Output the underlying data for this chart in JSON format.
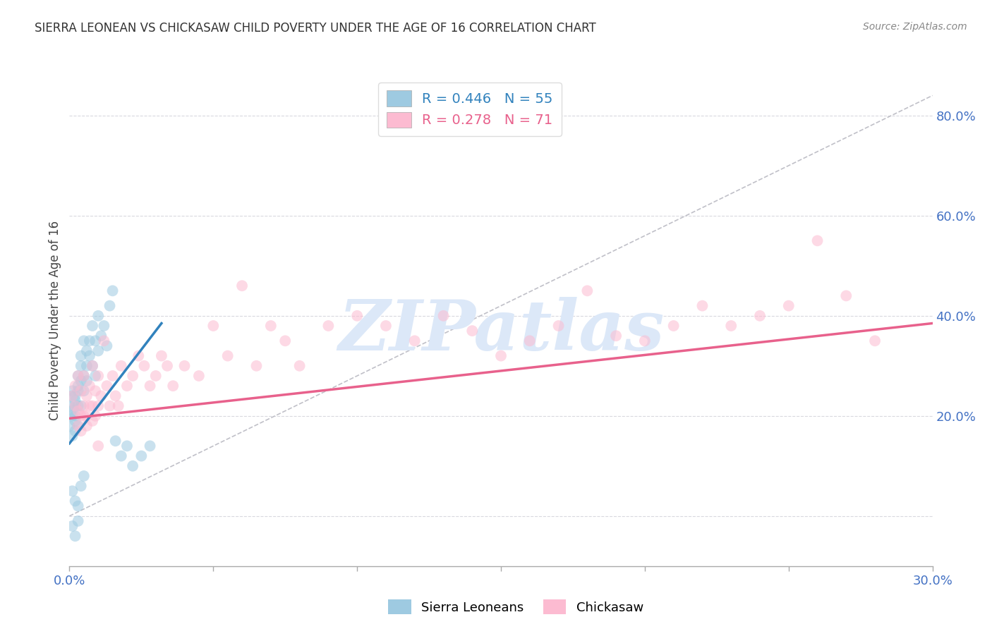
{
  "title": "SIERRA LEONEAN VS CHICKASAW CHILD POVERTY UNDER THE AGE OF 16 CORRELATION CHART",
  "source": "Source: ZipAtlas.com",
  "ylabel": "Child Poverty Under the Age of 16",
  "xlabel": "",
  "legend_labels": [
    "Sierra Leoneans",
    "Chickasaw"
  ],
  "r_blue": 0.446,
  "n_blue": 55,
  "r_pink": 0.278,
  "n_pink": 71,
  "blue_color": "#9ecae1",
  "pink_color": "#fcbbd1",
  "blue_line_color": "#3182bd",
  "pink_line_color": "#e8618c",
  "ref_line_color": "#c0c0c8",
  "title_color": "#333333",
  "axis_label_color": "#4472c4",
  "watermark_color": "#dce8f8",
  "xlim": [
    0.0,
    0.3
  ],
  "ylim": [
    -0.1,
    0.88
  ],
  "xticks": [
    0.0,
    0.05,
    0.1,
    0.15,
    0.2,
    0.25,
    0.3
  ],
  "yticks": [
    0.0,
    0.2,
    0.4,
    0.6,
    0.8
  ],
  "ytick_labels": [
    "",
    "20.0%",
    "40.0%",
    "60.0%",
    "80.0%"
  ],
  "xtick_labels": [
    "0.0%",
    "",
    "",
    "",
    "",
    "",
    "30.0%"
  ],
  "blue_scatter_x": [
    0.0,
    0.0,
    0.001,
    0.001,
    0.001,
    0.001,
    0.001,
    0.002,
    0.002,
    0.002,
    0.002,
    0.002,
    0.002,
    0.003,
    0.003,
    0.003,
    0.003,
    0.003,
    0.004,
    0.004,
    0.004,
    0.004,
    0.005,
    0.005,
    0.005,
    0.006,
    0.006,
    0.006,
    0.007,
    0.007,
    0.008,
    0.008,
    0.009,
    0.009,
    0.01,
    0.01,
    0.011,
    0.012,
    0.013,
    0.014,
    0.015,
    0.016,
    0.018,
    0.02,
    0.022,
    0.025,
    0.028,
    0.001,
    0.002,
    0.003,
    0.004,
    0.005,
    0.001,
    0.002,
    0.003
  ],
  "blue_scatter_y": [
    0.22,
    0.18,
    0.24,
    0.2,
    0.16,
    0.25,
    0.21,
    0.23,
    0.19,
    0.22,
    0.17,
    0.24,
    0.2,
    0.26,
    0.22,
    0.28,
    0.18,
    0.25,
    0.3,
    0.27,
    0.32,
    0.22,
    0.35,
    0.28,
    0.25,
    0.33,
    0.3,
    0.27,
    0.35,
    0.32,
    0.38,
    0.3,
    0.35,
    0.28,
    0.4,
    0.33,
    0.36,
    0.38,
    0.34,
    0.42,
    0.45,
    0.15,
    0.12,
    0.14,
    0.1,
    0.12,
    0.14,
    0.05,
    0.03,
    0.02,
    0.06,
    0.08,
    -0.02,
    -0.04,
    -0.01
  ],
  "pink_scatter_x": [
    0.001,
    0.002,
    0.002,
    0.003,
    0.003,
    0.004,
    0.004,
    0.005,
    0.005,
    0.006,
    0.006,
    0.007,
    0.008,
    0.008,
    0.009,
    0.01,
    0.01,
    0.011,
    0.012,
    0.013,
    0.014,
    0.015,
    0.016,
    0.017,
    0.018,
    0.02,
    0.022,
    0.024,
    0.026,
    0.028,
    0.03,
    0.032,
    0.034,
    0.036,
    0.04,
    0.045,
    0.05,
    0.055,
    0.06,
    0.065,
    0.07,
    0.075,
    0.08,
    0.09,
    0.1,
    0.11,
    0.12,
    0.13,
    0.14,
    0.15,
    0.16,
    0.17,
    0.18,
    0.19,
    0.2,
    0.21,
    0.22,
    0.23,
    0.24,
    0.25,
    0.26,
    0.27,
    0.28,
    0.003,
    0.004,
    0.005,
    0.006,
    0.007,
    0.008,
    0.009,
    0.01
  ],
  "pink_scatter_y": [
    0.24,
    0.22,
    0.26,
    0.21,
    0.28,
    0.2,
    0.25,
    0.22,
    0.28,
    0.24,
    0.2,
    0.26,
    0.3,
    0.22,
    0.25,
    0.28,
    0.22,
    0.24,
    0.35,
    0.26,
    0.22,
    0.28,
    0.24,
    0.22,
    0.3,
    0.26,
    0.28,
    0.32,
    0.3,
    0.26,
    0.28,
    0.32,
    0.3,
    0.26,
    0.3,
    0.28,
    0.38,
    0.32,
    0.46,
    0.3,
    0.38,
    0.35,
    0.3,
    0.38,
    0.4,
    0.38,
    0.35,
    0.4,
    0.37,
    0.32,
    0.35,
    0.38,
    0.45,
    0.36,
    0.35,
    0.38,
    0.42,
    0.38,
    0.4,
    0.42,
    0.55,
    0.44,
    0.35,
    0.18,
    0.17,
    0.2,
    0.18,
    0.22,
    0.19,
    0.2,
    0.14
  ],
  "blue_line_x": [
    0.0,
    0.032
  ],
  "blue_line_y": [
    0.145,
    0.385
  ],
  "pink_line_x": [
    0.0,
    0.3
  ],
  "pink_line_y": [
    0.195,
    0.385
  ],
  "ref_line_x": [
    0.0,
    0.3
  ],
  "ref_line_y": [
    0.0,
    0.84
  ],
  "marker_size": 130,
  "alpha": 0.55,
  "background_color": "#ffffff",
  "grid_color": "#d0d0d8",
  "fig_bg": "#ffffff"
}
